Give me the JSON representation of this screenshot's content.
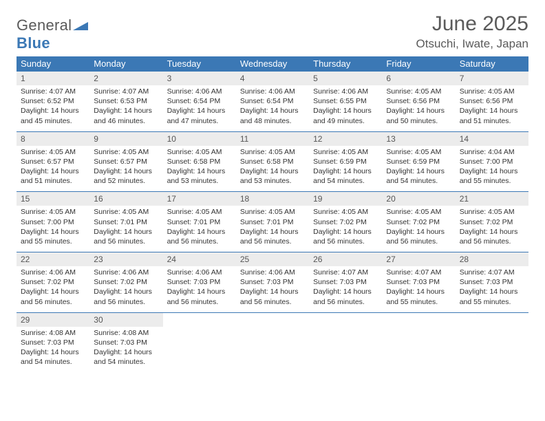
{
  "logo": {
    "text1": "General",
    "text2": "Blue"
  },
  "title": "June 2025",
  "location": "Otsuchi, Iwate, Japan",
  "dayHeaders": [
    "Sunday",
    "Monday",
    "Tuesday",
    "Wednesday",
    "Thursday",
    "Friday",
    "Saturday"
  ],
  "colors": {
    "headerBar": "#3b78b5",
    "dayNumBg": "#ececec",
    "weekDivider": "#3b78b5",
    "text": "#333333",
    "titleText": "#5a5a5a"
  },
  "weeks": [
    [
      {
        "num": "1",
        "sunrise": "Sunrise: 4:07 AM",
        "sunset": "Sunset: 6:52 PM",
        "day1": "Daylight: 14 hours",
        "day2": "and 45 minutes."
      },
      {
        "num": "2",
        "sunrise": "Sunrise: 4:07 AM",
        "sunset": "Sunset: 6:53 PM",
        "day1": "Daylight: 14 hours",
        "day2": "and 46 minutes."
      },
      {
        "num": "3",
        "sunrise": "Sunrise: 4:06 AM",
        "sunset": "Sunset: 6:54 PM",
        "day1": "Daylight: 14 hours",
        "day2": "and 47 minutes."
      },
      {
        "num": "4",
        "sunrise": "Sunrise: 4:06 AM",
        "sunset": "Sunset: 6:54 PM",
        "day1": "Daylight: 14 hours",
        "day2": "and 48 minutes."
      },
      {
        "num": "5",
        "sunrise": "Sunrise: 4:06 AM",
        "sunset": "Sunset: 6:55 PM",
        "day1": "Daylight: 14 hours",
        "day2": "and 49 minutes."
      },
      {
        "num": "6",
        "sunrise": "Sunrise: 4:05 AM",
        "sunset": "Sunset: 6:56 PM",
        "day1": "Daylight: 14 hours",
        "day2": "and 50 minutes."
      },
      {
        "num": "7",
        "sunrise": "Sunrise: 4:05 AM",
        "sunset": "Sunset: 6:56 PM",
        "day1": "Daylight: 14 hours",
        "day2": "and 51 minutes."
      }
    ],
    [
      {
        "num": "8",
        "sunrise": "Sunrise: 4:05 AM",
        "sunset": "Sunset: 6:57 PM",
        "day1": "Daylight: 14 hours",
        "day2": "and 51 minutes."
      },
      {
        "num": "9",
        "sunrise": "Sunrise: 4:05 AM",
        "sunset": "Sunset: 6:57 PM",
        "day1": "Daylight: 14 hours",
        "day2": "and 52 minutes."
      },
      {
        "num": "10",
        "sunrise": "Sunrise: 4:05 AM",
        "sunset": "Sunset: 6:58 PM",
        "day1": "Daylight: 14 hours",
        "day2": "and 53 minutes."
      },
      {
        "num": "11",
        "sunrise": "Sunrise: 4:05 AM",
        "sunset": "Sunset: 6:58 PM",
        "day1": "Daylight: 14 hours",
        "day2": "and 53 minutes."
      },
      {
        "num": "12",
        "sunrise": "Sunrise: 4:05 AM",
        "sunset": "Sunset: 6:59 PM",
        "day1": "Daylight: 14 hours",
        "day2": "and 54 minutes."
      },
      {
        "num": "13",
        "sunrise": "Sunrise: 4:05 AM",
        "sunset": "Sunset: 6:59 PM",
        "day1": "Daylight: 14 hours",
        "day2": "and 54 minutes."
      },
      {
        "num": "14",
        "sunrise": "Sunrise: 4:04 AM",
        "sunset": "Sunset: 7:00 PM",
        "day1": "Daylight: 14 hours",
        "day2": "and 55 minutes."
      }
    ],
    [
      {
        "num": "15",
        "sunrise": "Sunrise: 4:05 AM",
        "sunset": "Sunset: 7:00 PM",
        "day1": "Daylight: 14 hours",
        "day2": "and 55 minutes."
      },
      {
        "num": "16",
        "sunrise": "Sunrise: 4:05 AM",
        "sunset": "Sunset: 7:01 PM",
        "day1": "Daylight: 14 hours",
        "day2": "and 56 minutes."
      },
      {
        "num": "17",
        "sunrise": "Sunrise: 4:05 AM",
        "sunset": "Sunset: 7:01 PM",
        "day1": "Daylight: 14 hours",
        "day2": "and 56 minutes."
      },
      {
        "num": "18",
        "sunrise": "Sunrise: 4:05 AM",
        "sunset": "Sunset: 7:01 PM",
        "day1": "Daylight: 14 hours",
        "day2": "and 56 minutes."
      },
      {
        "num": "19",
        "sunrise": "Sunrise: 4:05 AM",
        "sunset": "Sunset: 7:02 PM",
        "day1": "Daylight: 14 hours",
        "day2": "and 56 minutes."
      },
      {
        "num": "20",
        "sunrise": "Sunrise: 4:05 AM",
        "sunset": "Sunset: 7:02 PM",
        "day1": "Daylight: 14 hours",
        "day2": "and 56 minutes."
      },
      {
        "num": "21",
        "sunrise": "Sunrise: 4:05 AM",
        "sunset": "Sunset: 7:02 PM",
        "day1": "Daylight: 14 hours",
        "day2": "and 56 minutes."
      }
    ],
    [
      {
        "num": "22",
        "sunrise": "Sunrise: 4:06 AM",
        "sunset": "Sunset: 7:02 PM",
        "day1": "Daylight: 14 hours",
        "day2": "and 56 minutes."
      },
      {
        "num": "23",
        "sunrise": "Sunrise: 4:06 AM",
        "sunset": "Sunset: 7:02 PM",
        "day1": "Daylight: 14 hours",
        "day2": "and 56 minutes."
      },
      {
        "num": "24",
        "sunrise": "Sunrise: 4:06 AM",
        "sunset": "Sunset: 7:03 PM",
        "day1": "Daylight: 14 hours",
        "day2": "and 56 minutes."
      },
      {
        "num": "25",
        "sunrise": "Sunrise: 4:06 AM",
        "sunset": "Sunset: 7:03 PM",
        "day1": "Daylight: 14 hours",
        "day2": "and 56 minutes."
      },
      {
        "num": "26",
        "sunrise": "Sunrise: 4:07 AM",
        "sunset": "Sunset: 7:03 PM",
        "day1": "Daylight: 14 hours",
        "day2": "and 56 minutes."
      },
      {
        "num": "27",
        "sunrise": "Sunrise: 4:07 AM",
        "sunset": "Sunset: 7:03 PM",
        "day1": "Daylight: 14 hours",
        "day2": "and 55 minutes."
      },
      {
        "num": "28",
        "sunrise": "Sunrise: 4:07 AM",
        "sunset": "Sunset: 7:03 PM",
        "day1": "Daylight: 14 hours",
        "day2": "and 55 minutes."
      }
    ],
    [
      {
        "num": "29",
        "sunrise": "Sunrise: 4:08 AM",
        "sunset": "Sunset: 7:03 PM",
        "day1": "Daylight: 14 hours",
        "day2": "and 54 minutes."
      },
      {
        "num": "30",
        "sunrise": "Sunrise: 4:08 AM",
        "sunset": "Sunset: 7:03 PM",
        "day1": "Daylight: 14 hours",
        "day2": "and 54 minutes."
      },
      null,
      null,
      null,
      null,
      null
    ]
  ]
}
